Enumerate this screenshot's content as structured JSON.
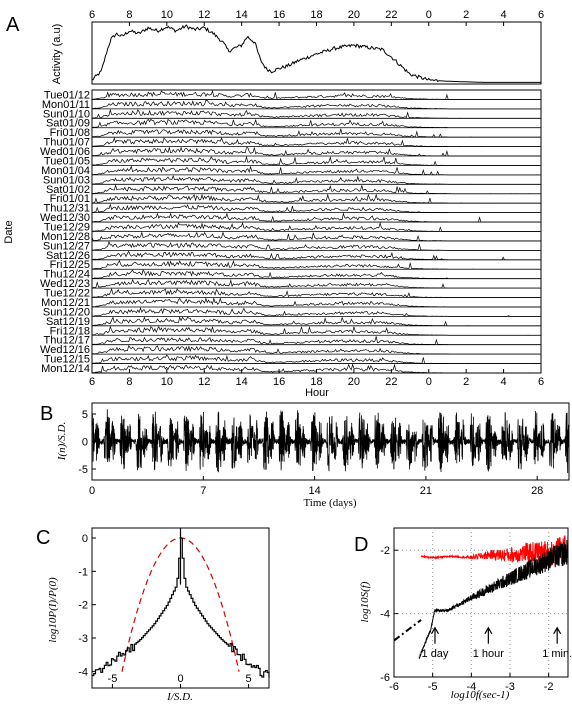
{
  "panel_labels": [
    "A",
    "B",
    "C",
    "D"
  ],
  "chart_data": [
    {
      "panel": "A-top",
      "type": "line",
      "ylabel": "Activity (a.u)",
      "x_ticks": [
        "6",
        "8",
        "10",
        "12",
        "14",
        "16",
        "18",
        "20",
        "22",
        "0",
        "2",
        "4",
        "6"
      ],
      "profile": {
        "hours": [
          6,
          6.5,
          6.8,
          7,
          7.3,
          7.6,
          8,
          8.5,
          9,
          9.5,
          10,
          10.5,
          11,
          11.5,
          12,
          12.5,
          13,
          13.3,
          13.6,
          14,
          14.3,
          14.7,
          15,
          15.3,
          15.6,
          16,
          16.5,
          17,
          18,
          19,
          20,
          21,
          21.5,
          22,
          22.5,
          23,
          23.5,
          24,
          25,
          26,
          27,
          30
        ],
        "values": [
          0.05,
          0.2,
          0.55,
          0.75,
          0.85,
          0.8,
          0.9,
          0.85,
          0.95,
          0.9,
          0.97,
          0.9,
          0.98,
          0.92,
          0.95,
          0.85,
          0.7,
          0.55,
          0.6,
          0.65,
          0.8,
          0.7,
          0.4,
          0.25,
          0.2,
          0.25,
          0.3,
          0.38,
          0.5,
          0.6,
          0.65,
          0.6,
          0.58,
          0.45,
          0.3,
          0.15,
          0.1,
          0.05,
          0.03,
          0.02,
          0.01,
          0.01
        ]
      }
    },
    {
      "panel": "A",
      "type": "line",
      "xlabel": "Hour",
      "ylabel": "Date",
      "x_ticks": [
        "6",
        "8",
        "10",
        "12",
        "14",
        "16",
        "18",
        "20",
        "22",
        "0",
        "2",
        "4",
        "6"
      ],
      "rows": [
        "Tue01/12",
        "Mon01/11",
        "Sun01/10",
        "Sat01/09",
        "Fri01/08",
        "Thu01/07",
        "Wed01/06",
        "Tue01/05",
        "Mon01/04",
        "Sun01/03",
        "Sat01/02",
        "Fri01/01",
        "Thu12/31",
        "Wed12/30",
        "Tue12/29",
        "Mon12/28",
        "Sun12/27",
        "Sat12/26",
        "Fri12/25",
        "Thu12/24",
        "Wed12/23",
        "Tue12/22",
        "Mon12/21",
        "Sun12/20",
        "Sat12/19",
        "Fri12/18",
        "Thu12/17",
        "Wed12/16",
        "Tue12/15",
        "Mon12/14"
      ]
    },
    {
      "panel": "B",
      "type": "line",
      "xlabel": "Time (days)",
      "ylabel": "I(n)/S.D.",
      "x_ticks": [
        "0",
        "7",
        "14",
        "21",
        "28"
      ],
      "y_ticks": [
        "5",
        "0",
        "-5"
      ],
      "xlim": [
        0,
        30
      ],
      "ylim": [
        -7,
        7
      ]
    },
    {
      "panel": "C",
      "type": "line",
      "xlabel": "I/S.D.",
      "ylabel": "log10P(I)/P(0)",
      "x_ticks": [
        "-5",
        "0",
        "5"
      ],
      "y_ticks": [
        "0",
        "-1",
        "-2",
        "-3",
        "-4"
      ],
      "xlim": [
        -6.5,
        6.5
      ],
      "ylim": [
        -4.5,
        0.3
      ],
      "series": [
        {
          "x": [
            -6.5,
            -5,
            -4,
            -3,
            -2,
            -1,
            -0.3,
            0,
            0.3,
            1,
            2,
            3,
            4,
            5,
            6.5
          ],
          "y": [
            -4.1,
            -3.7,
            -3.4,
            -3.05,
            -2.6,
            -2.0,
            -1.4,
            0,
            -1.4,
            -2.0,
            -2.6,
            -3.05,
            -3.4,
            -3.7,
            -4.2
          ]
        },
        {
          "x": [
            -4.3,
            -3.5,
            -3,
            -2,
            -1,
            0,
            1,
            2,
            3,
            3.5,
            4.3
          ],
          "y": [
            -4.5,
            -2.66,
            -1.95,
            -0.87,
            -0.22,
            0,
            -0.22,
            -0.87,
            -1.95,
            -2.66,
            -4.5
          ]
        }
      ]
    },
    {
      "panel": "D",
      "type": "line",
      "xlabel": "log10f(sec-1)",
      "ylabel": "log10S(f)",
      "x_ticks": [
        "-6",
        "-5",
        "-4",
        "-3",
        "-2"
      ],
      "y_ticks": [
        "-2",
        "-4",
        "-6"
      ],
      "xlim": [
        -6,
        -1.5
      ],
      "ylim": [
        -6,
        -1.3
      ],
      "colors": {
        "shuffled": "#ff0000",
        "original": "#000000"
      },
      "annotations": [
        "1 day",
        "1 hour",
        "1 min."
      ],
      "annotation_x": [
        -4.94,
        -3.56,
        -1.78
      ],
      "series": [
        {
          "x": [
            -5.3,
            -5.0,
            -4.5,
            -4.0,
            -3.5,
            -3.0,
            -2.5,
            -2.0,
            -1.5
          ],
          "y": [
            -2.2,
            -2.25,
            -2.2,
            -2.25,
            -2.2,
            -2.25,
            -2.2,
            -2.25,
            -2.2
          ]
        },
        {
          "x": [
            -5.35,
            -5.05,
            -4.95,
            -4.6,
            -4.0,
            -3.5,
            -3.0,
            -2.5,
            -2.0,
            -1.5
          ],
          "y": [
            -5.4,
            -4.5,
            -3.9,
            -3.9,
            -3.5,
            -3.2,
            -2.9,
            -2.6,
            -2.3,
            -2.05
          ]
        },
        {
          "x": [
            -6.0,
            -5.3
          ],
          "y": [
            -4.85,
            -4.2
          ]
        }
      ]
    }
  ]
}
